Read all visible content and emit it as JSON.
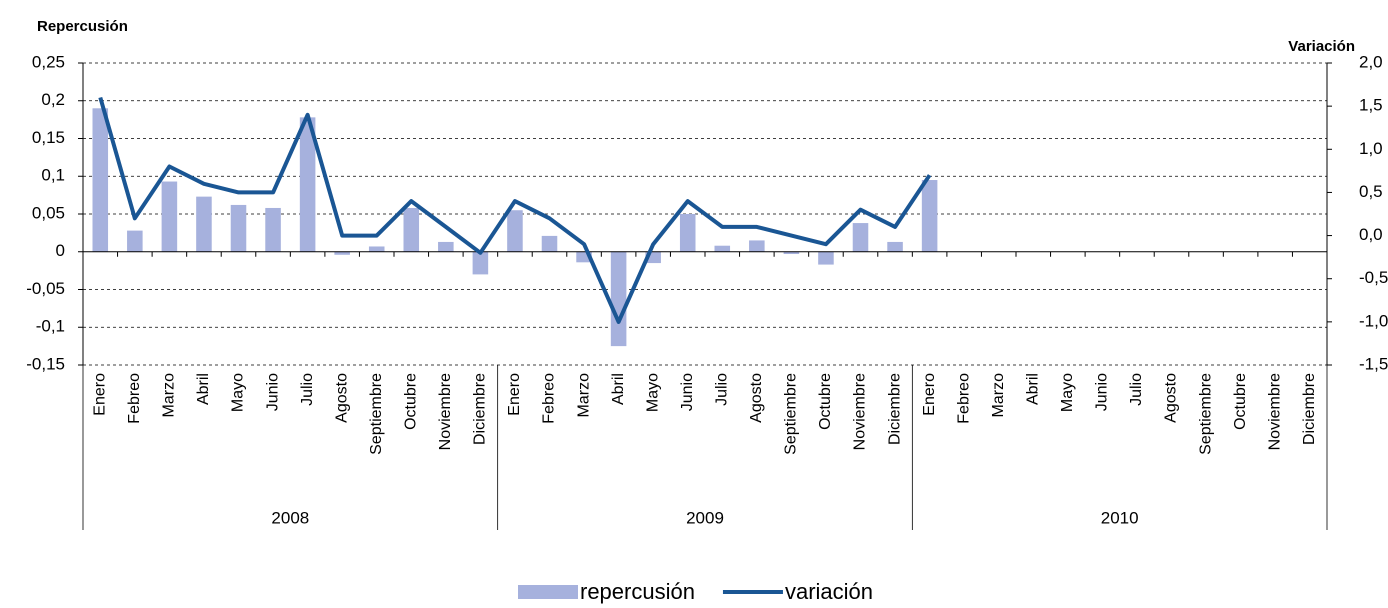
{
  "chart_data": {
    "type": "bar-line",
    "y_axis_title": "Repercusión",
    "y2_axis_title": "Variación",
    "categories": [
      "Enero",
      "Febreo",
      "Marzo",
      "Abril",
      "Mayo",
      "Junio",
      "Julio",
      "Agosto",
      "Septiembre",
      "Octubre",
      "Noviembre",
      "Diciembre",
      "Enero",
      "Febreo",
      "Marzo",
      "Abril",
      "Mayo",
      "Junio",
      "Julio",
      "Agosto",
      "Septiembre",
      "Octubre",
      "Noviembre",
      "Diciembre",
      "Enero",
      "Febreo",
      "Marzo",
      "Abril",
      "Mayo",
      "Junio",
      "Julio",
      "Agosto",
      "Septiembre",
      "Octubre",
      "Noviembre",
      "Diciembre"
    ],
    "groups": [
      "2008",
      "2009",
      "2010"
    ],
    "series": [
      {
        "name": "repercusión",
        "type": "bar",
        "color": "#a6b1dd",
        "values": [
          0.19,
          0.028,
          0.093,
          0.073,
          0.062,
          0.058,
          0.178,
          -0.004,
          0.007,
          0.058,
          0.013,
          -0.03,
          0.055,
          0.021,
          -0.014,
          -0.125,
          -0.015,
          0.05,
          0.008,
          0.015,
          -0.003,
          -0.017,
          0.038,
          0.013,
          0.095,
          null,
          null,
          null,
          null,
          null,
          null,
          null,
          null,
          null,
          null,
          null
        ]
      },
      {
        "name": "variación",
        "type": "line",
        "axis": "y2",
        "color": "#1a5694",
        "values": [
          1.6,
          0.2,
          0.8,
          0.6,
          0.5,
          0.5,
          1.4,
          0.0,
          0.0,
          0.4,
          0.1,
          -0.2,
          0.4,
          0.2,
          -0.1,
          -1.0,
          -0.1,
          0.4,
          0.1,
          0.1,
          0.0,
          -0.1,
          0.3,
          0.1,
          0.7,
          null,
          null,
          null,
          null,
          null,
          null,
          null,
          null,
          null,
          null,
          null
        ]
      }
    ],
    "ylim": [
      -0.15,
      0.25
    ],
    "yticks": [
      {
        "value": 0.25,
        "label": "0,25"
      },
      {
        "value": 0.2,
        "label": "0,2"
      },
      {
        "value": 0.15,
        "label": "0,15"
      },
      {
        "value": 0.1,
        "label": "0,1"
      },
      {
        "value": 0.05,
        "label": "0,05"
      },
      0,
      {
        "value": -0.05,
        "label": "-0,05"
      },
      {
        "value": -0.1,
        "label": "-0,1"
      },
      {
        "value": -0.15,
        "label": "-0,15"
      }
    ],
    "y2lim": [
      -1.5,
      2.0
    ],
    "y2ticks": [
      {
        "value": 2.0,
        "label": "2,0"
      },
      {
        "value": 1.5,
        "label": "1,5"
      },
      {
        "value": 1.0,
        "label": "1,0"
      },
      {
        "value": 0.5,
        "label": "0,5"
      },
      {
        "value": 0.0,
        "label": "0,0"
      },
      {
        "value": -0.5,
        "label": "-0,5"
      },
      {
        "value": -1.0,
        "label": "-1,0"
      },
      {
        "value": -1.5,
        "label": "-1,5"
      }
    ],
    "grid": true,
    "legend": "bottom"
  }
}
